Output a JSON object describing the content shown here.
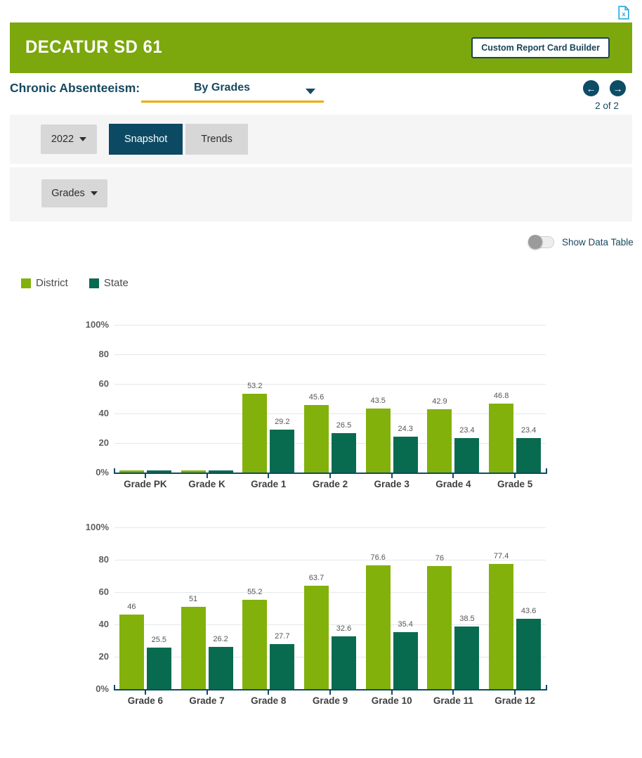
{
  "colors": {
    "brand_green": "#7CA70D",
    "district_green": "#82B10C",
    "state_teal": "#086B50",
    "navy": "#0D4C66",
    "text_navy": "#17495F",
    "gold_accent": "#F0A800",
    "band_background": "#F5F5F6",
    "export_icon_blue": "#29ABE2"
  },
  "icons": {
    "export": "excel-download-icon",
    "metric_caret": "chevron-down-icon",
    "prev": "arrow-left-icon",
    "next": "arrow-right-icon"
  },
  "header": {
    "title": "DECATUR SD 61",
    "builder_button": "Custom Report Card Builder"
  },
  "selector": {
    "label": "Chronic Absenteeism:",
    "value": "By Grades",
    "page_indicator": "2 of 2",
    "prev_arrow": "←",
    "next_arrow": "→"
  },
  "controls": {
    "year": "2022",
    "tabs": [
      {
        "label": "Snapshot",
        "active": true
      },
      {
        "label": "Trends",
        "active": false
      }
    ],
    "grades": "Grades"
  },
  "data_table_toggle": {
    "label": "Show Data Table",
    "state": "off"
  },
  "legend": {
    "items": [
      {
        "label": "District",
        "color": "#82B10C"
      },
      {
        "label": "State",
        "color": "#086B50"
      }
    ]
  },
  "chart_data": [
    {
      "type": "bar",
      "title": "",
      "categories": [
        "Grade PK",
        "Grade K",
        "Grade 1",
        "Grade 2",
        "Grade 3",
        "Grade 4",
        "Grade 5"
      ],
      "series": [
        {
          "name": "District",
          "color": "#82B10C",
          "values": [
            null,
            null,
            53.2,
            45.6,
            43.5,
            42.9,
            46.8
          ]
        },
        {
          "name": "State",
          "color": "#086B50",
          "values": [
            null,
            null,
            29.2,
            26.5,
            24.3,
            23.4,
            23.4
          ]
        }
      ],
      "ytick_labels": [
        "100%",
        "80",
        "60",
        "40",
        "20",
        "0%"
      ],
      "ylim": [
        0,
        100
      ],
      "grid": "horizontal",
      "null_value_render": "tiny unlabeled stub bar"
    },
    {
      "type": "bar",
      "title": "",
      "categories": [
        "Grade 6",
        "Grade 7",
        "Grade 8",
        "Grade 9",
        "Grade 10",
        "Grade 11",
        "Grade 12"
      ],
      "series": [
        {
          "name": "District",
          "color": "#82B10C",
          "values": [
            46,
            51,
            55.2,
            63.7,
            76.6,
            76,
            77.4
          ]
        },
        {
          "name": "State",
          "color": "#086B50",
          "values": [
            25.5,
            26.2,
            27.7,
            32.6,
            35.4,
            38.5,
            43.6
          ]
        }
      ],
      "ytick_labels": [
        "100%",
        "80",
        "60",
        "40",
        "20",
        "0%"
      ],
      "ylim": [
        0,
        100
      ],
      "grid": "horizontal"
    }
  ]
}
